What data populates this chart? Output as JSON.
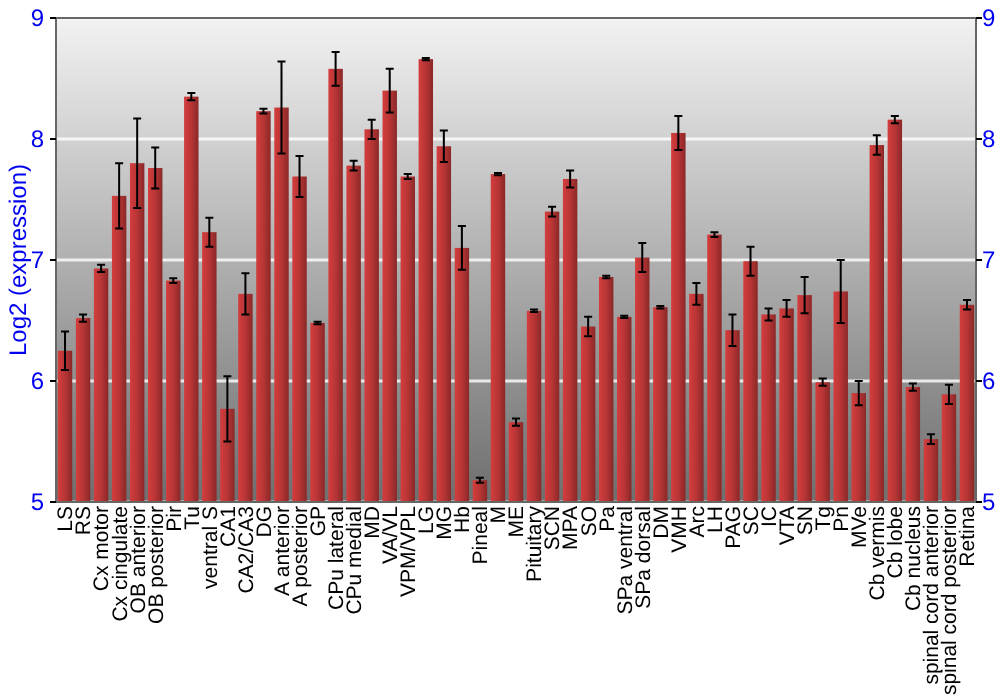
{
  "chart_data": {
    "type": "bar",
    "ylabel": "Log2 (expression)",
    "categories": [
      "LS",
      "RS",
      "Cx motor",
      "Cx cingulate",
      "OB anterior",
      "OB posterior",
      "Pir",
      "Tu",
      "ventral S",
      "CA1",
      "CA2/CA3",
      "DG",
      "A anterior",
      "A posterior",
      "GP",
      "CPu lateral",
      "CPu medial",
      "MD",
      "VA/VL",
      "VPM/VPL",
      "LG",
      "MG",
      "Hb",
      "Pineal",
      "M",
      "ME",
      "Pituitary",
      "SCN",
      "MPA",
      "SO",
      "Pa",
      "SPa ventral",
      "SPa dorsal",
      "DM",
      "VMH",
      "Arc",
      "LH",
      "PAG",
      "SC",
      "IC",
      "VTA",
      "SN",
      "Tg",
      "Pn",
      "MVe",
      "Cb vermis",
      "Cb lobe",
      "Cb nucleus",
      "spinal cord anterior",
      "spinal cord posterior",
      "Retina"
    ],
    "values": [
      6.25,
      6.52,
      6.93,
      7.53,
      7.8,
      7.76,
      6.83,
      8.35,
      7.23,
      5.77,
      6.72,
      8.23,
      8.26,
      7.69,
      6.48,
      8.58,
      7.78,
      8.08,
      8.4,
      7.69,
      8.66,
      7.94,
      7.1,
      5.18,
      7.71,
      5.66,
      6.58,
      7.4,
      7.67,
      6.45,
      6.86,
      6.53,
      7.02,
      6.61,
      8.05,
      6.72,
      7.21,
      6.42,
      6.99,
      6.55,
      6.6,
      6.71,
      5.99,
      6.74,
      5.9,
      7.95,
      8.16,
      5.95,
      5.52,
      5.89,
      6.63
    ],
    "errors": [
      0.16,
      0.03,
      0.03,
      0.27,
      0.37,
      0.17,
      0.02,
      0.03,
      0.12,
      0.27,
      0.17,
      0.02,
      0.38,
      0.17,
      0.01,
      0.14,
      0.04,
      0.08,
      0.18,
      0.02,
      0.01,
      0.13,
      0.18,
      0.02,
      0.01,
      0.03,
      0.01,
      0.04,
      0.07,
      0.08,
      0.01,
      0.01,
      0.12,
      0.01,
      0.14,
      0.09,
      0.02,
      0.13,
      0.12,
      0.05,
      0.07,
      0.15,
      0.03,
      0.26,
      0.1,
      0.08,
      0.03,
      0.03,
      0.04,
      0.08,
      0.04
    ],
    "color": "#b83535",
    "ylim": [
      5,
      9
    ],
    "yticks": [
      5,
      6,
      7,
      8,
      9
    ],
    "y2lim": [
      5,
      9
    ],
    "y2ticks": [
      5,
      6,
      7,
      8,
      9
    ],
    "grid": "y"
  }
}
